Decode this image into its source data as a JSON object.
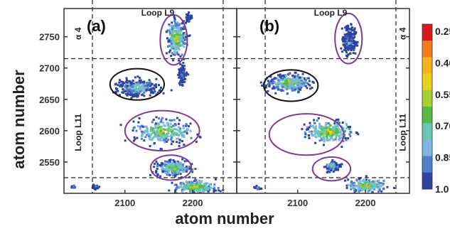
{
  "chart_data": {
    "type": "heatmap",
    "xlabel": "atom number",
    "ylabel": "atom number",
    "xlim": [
      2010,
      2265
    ],
    "ylim": [
      2500,
      2795
    ],
    "x_ticks": [
      "2100",
      "2200"
    ],
    "y_ticks": [
      "2550",
      "2600",
      "2650",
      "2700",
      "2750"
    ],
    "x_tick_values": [
      2100,
      2200
    ],
    "y_tick_values": [
      2550,
      2600,
      2650,
      2700,
      2750
    ],
    "divider_x": [
      2052,
      2245
    ],
    "divider_y": [
      2525,
      2715
    ],
    "panels": [
      {
        "label": "(a)",
        "regions": {
          "top": "Loop  L9",
          "left_top": "α 4",
          "left_mid": "Loop  L11"
        },
        "ellipses": [
          {
            "cx": 2172,
            "cy": 2745,
            "rx": 20,
            "ry": 40,
            "color": "#7a3d8f"
          },
          {
            "cx": 2118,
            "cy": 2674,
            "rx": 40,
            "ry": 25,
            "color": "#111111"
          },
          {
            "cx": 2155,
            "cy": 2600,
            "rx": 55,
            "ry": 32,
            "color": "#7a3d8f"
          },
          {
            "cx": 2168,
            "cy": 2541,
            "rx": 30,
            "ry": 20,
            "color": "#7a3d8f"
          }
        ],
        "clusters": [
          {
            "x": 2175,
            "y": 2750,
            "sx": 12,
            "sy": 24,
            "v": 0.55
          },
          {
            "x": 2193,
            "y": 2781,
            "sx": 4,
            "sy": 8,
            "v": 0.85
          },
          {
            "x": 2118,
            "y": 2670,
            "sx": 28,
            "sy": 12,
            "v": 0.7
          },
          {
            "x": 2183,
            "y": 2690,
            "sx": 6,
            "sy": 14,
            "v": 0.85
          },
          {
            "x": 2155,
            "y": 2600,
            "sx": 42,
            "sy": 18,
            "v": 0.6
          },
          {
            "x": 2170,
            "y": 2542,
            "sx": 22,
            "sy": 11,
            "v": 0.6
          },
          {
            "x": 2203,
            "y": 2512,
            "sx": 26,
            "sy": 9,
            "v": 0.55
          },
          {
            "x": 2055,
            "y": 2512,
            "sx": 5,
            "sy": 3,
            "v": 0.85
          },
          {
            "x": 2022,
            "y": 2512,
            "sx": 3,
            "sy": 2,
            "v": 0.85
          }
        ]
      },
      {
        "label": "(b)",
        "regions": {
          "top": "Loop  L9",
          "right_top": "α 4",
          "right_mid": "Loop  L11"
        },
        "ellipses": [
          {
            "cx": 2175,
            "cy": 2747,
            "rx": 20,
            "ry": 40,
            "color": "#7a3d8f"
          },
          {
            "cx": 2090,
            "cy": 2672,
            "rx": 40,
            "ry": 25,
            "color": "#111111"
          },
          {
            "cx": 2113,
            "cy": 2594,
            "rx": 55,
            "ry": 33,
            "color": "#7a3d8f"
          },
          {
            "cx": 2150,
            "cy": 2539,
            "rx": 28,
            "ry": 19,
            "color": "#7a3d8f"
          }
        ],
        "clusters": [
          {
            "x": 2175,
            "y": 2745,
            "sx": 10,
            "sy": 20,
            "v": 0.85
          },
          {
            "x": 2085,
            "y": 2678,
            "sx": 28,
            "sy": 12,
            "v": 0.6
          },
          {
            "x": 2145,
            "y": 2600,
            "sx": 30,
            "sy": 15,
            "v": 0.55
          },
          {
            "x": 2150,
            "y": 2545,
            "sx": 10,
            "sy": 8,
            "v": 0.7
          },
          {
            "x": 2200,
            "y": 2514,
            "sx": 24,
            "sy": 9,
            "v": 0.55
          },
          {
            "x": 2040,
            "y": 2510,
            "sx": 4,
            "sy": 3,
            "v": 0.85
          }
        ]
      }
    ],
    "colorbar": {
      "labels": [
        "0.25",
        "0.40",
        "0.55",
        "0.70",
        "0.85",
        "1.0"
      ],
      "colors": [
        "#d7191c",
        "#f07c1e",
        "#f3b320",
        "#e8d320",
        "#a6d130",
        "#57b848",
        "#6ac6b8",
        "#7fb7e0",
        "#4f7fc8",
        "#2d44a0"
      ]
    }
  }
}
